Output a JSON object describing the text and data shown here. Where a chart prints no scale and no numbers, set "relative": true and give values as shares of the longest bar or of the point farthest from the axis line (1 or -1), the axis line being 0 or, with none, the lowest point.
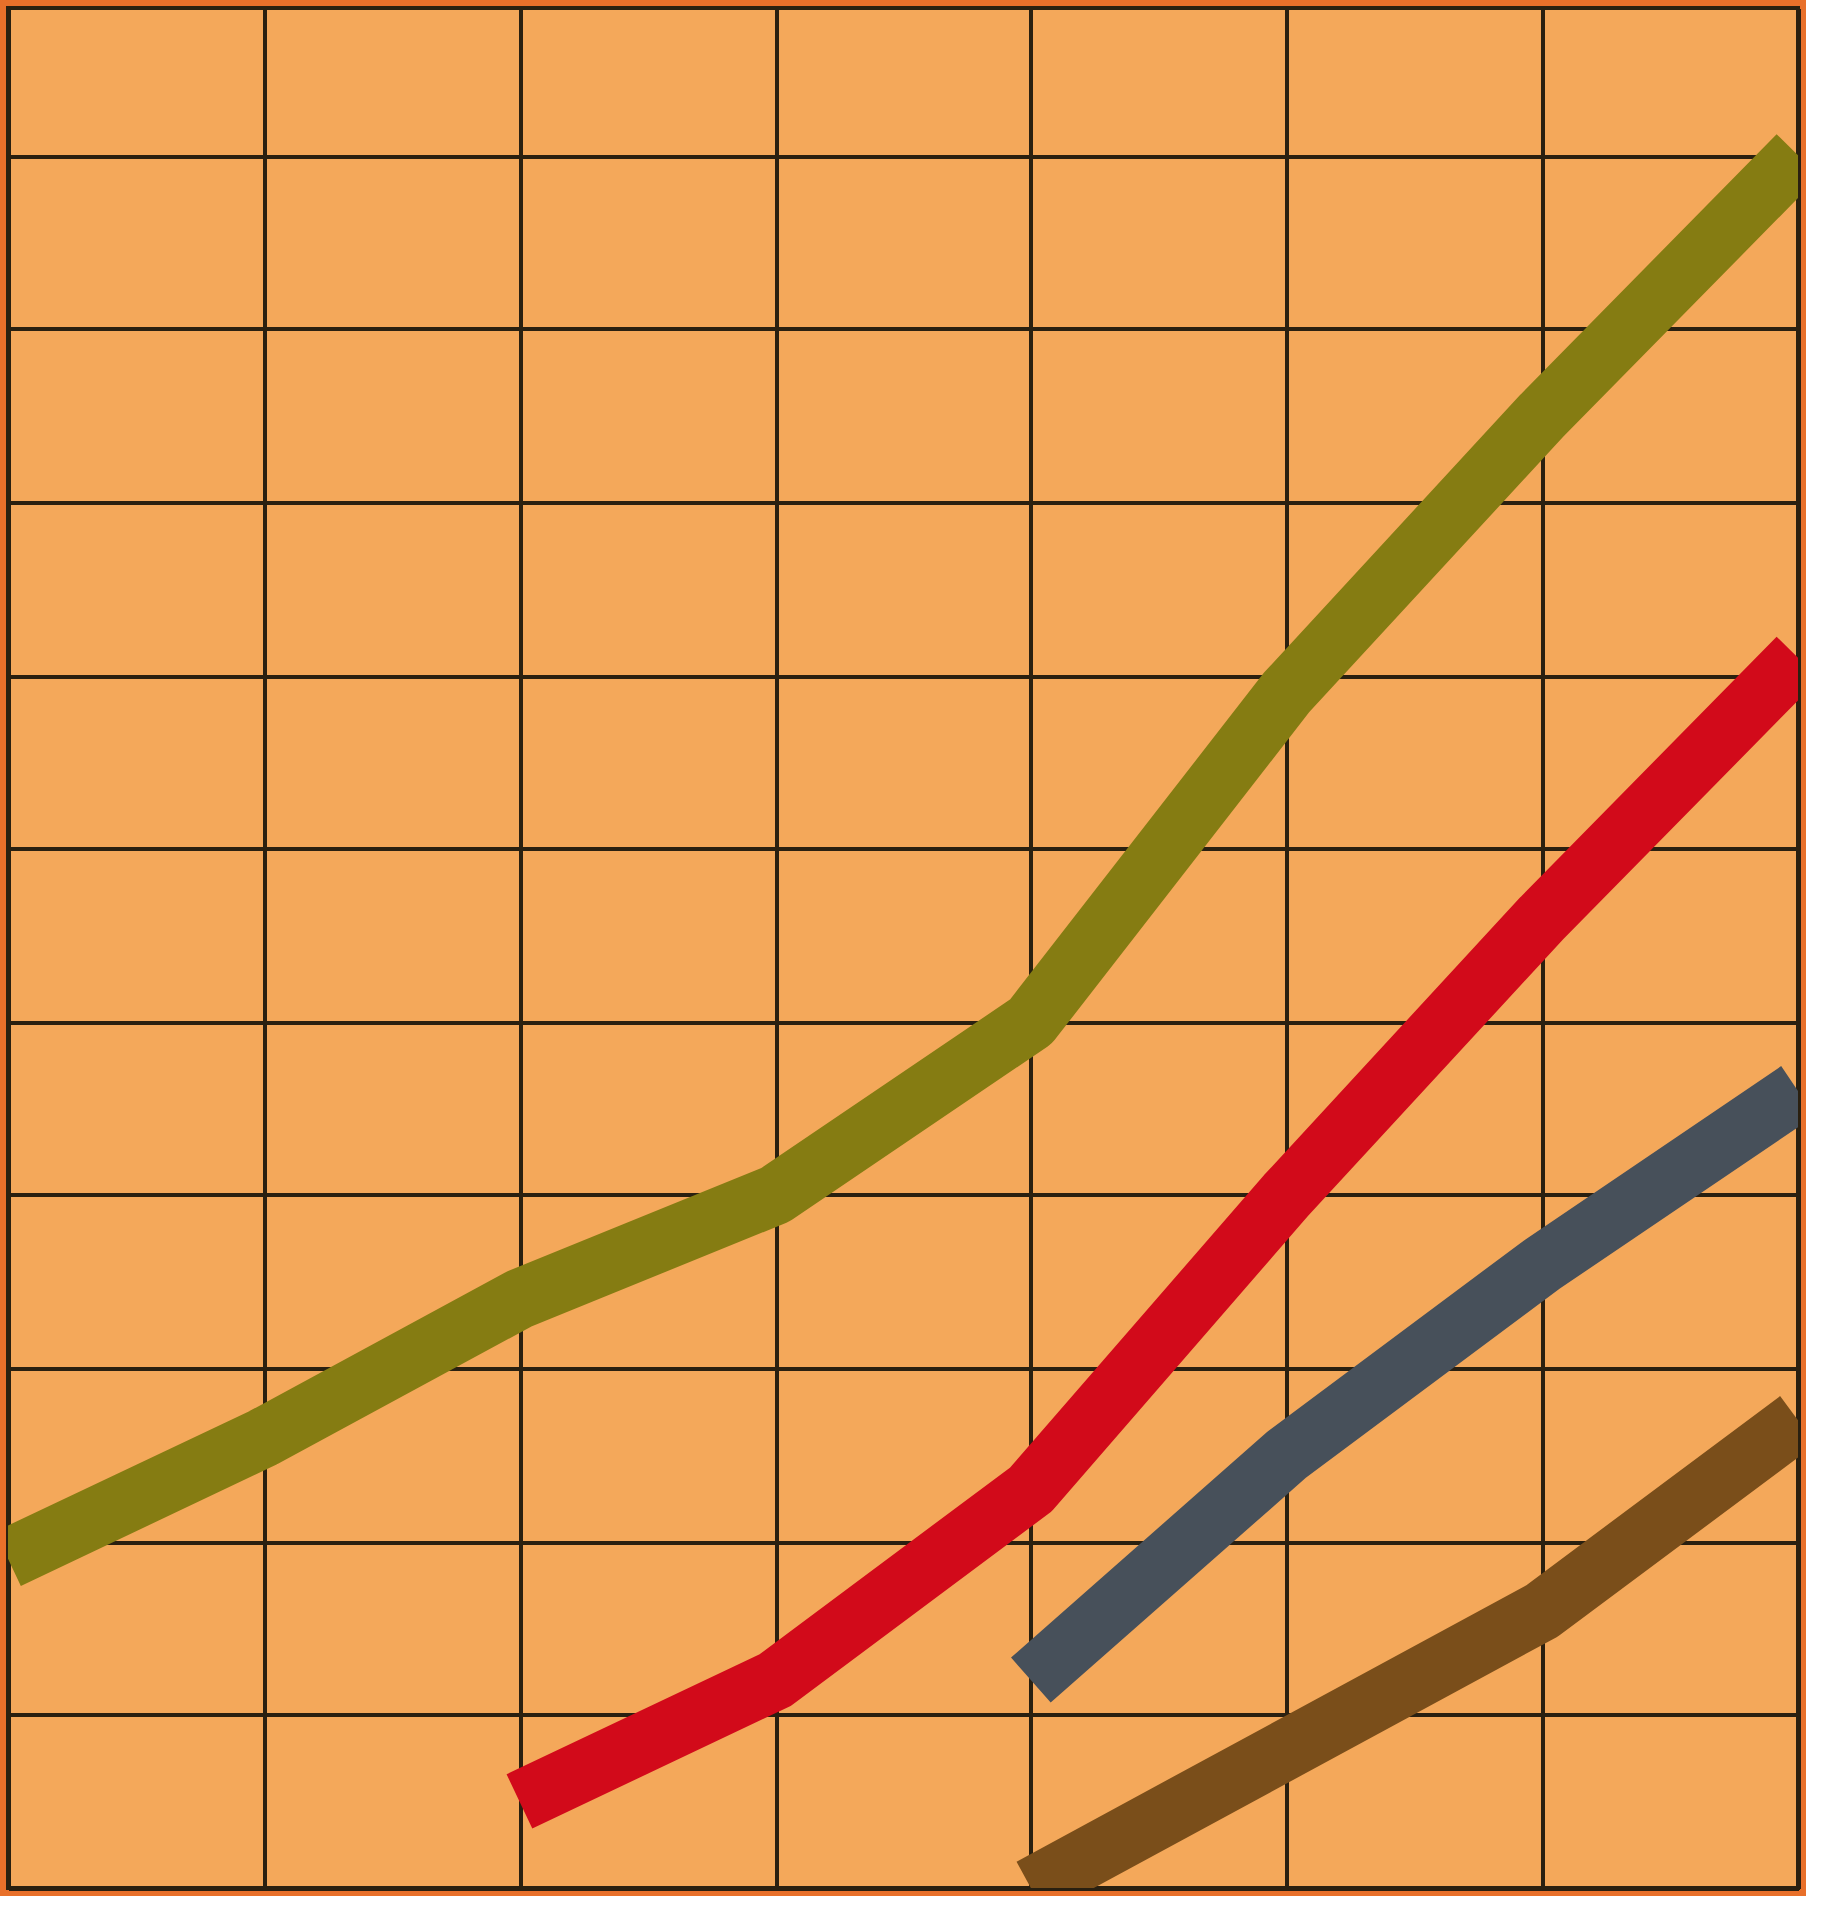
{
  "chart_data": {
    "type": "line",
    "relative": true,
    "categories": [
      null,
      null,
      null,
      null,
      null,
      null,
      null,
      null
    ],
    "series": [
      {
        "color": "#857c12",
        "values": [
          0.19,
          0.26,
          0.34,
          0.4,
          0.5,
          0.69,
          0.85,
          1.0
        ]
      },
      {
        "color": "#d20a1a",
        "values": [
          null,
          null,
          0.05,
          0.12,
          0.23,
          0.4,
          0.56,
          0.71
        ]
      },
      {
        "color": "#47505a",
        "values": [
          null,
          null,
          null,
          null,
          0.12,
          0.25,
          0.36,
          0.46
        ]
      },
      {
        "color": "#7a4e1a",
        "values": [
          null,
          null,
          null,
          null,
          0.0,
          0.08,
          0.16,
          0.27
        ]
      }
    ],
    "grid": true,
    "tick_labels": false,
    "line_style": "solid",
    "marker": "none"
  }
}
